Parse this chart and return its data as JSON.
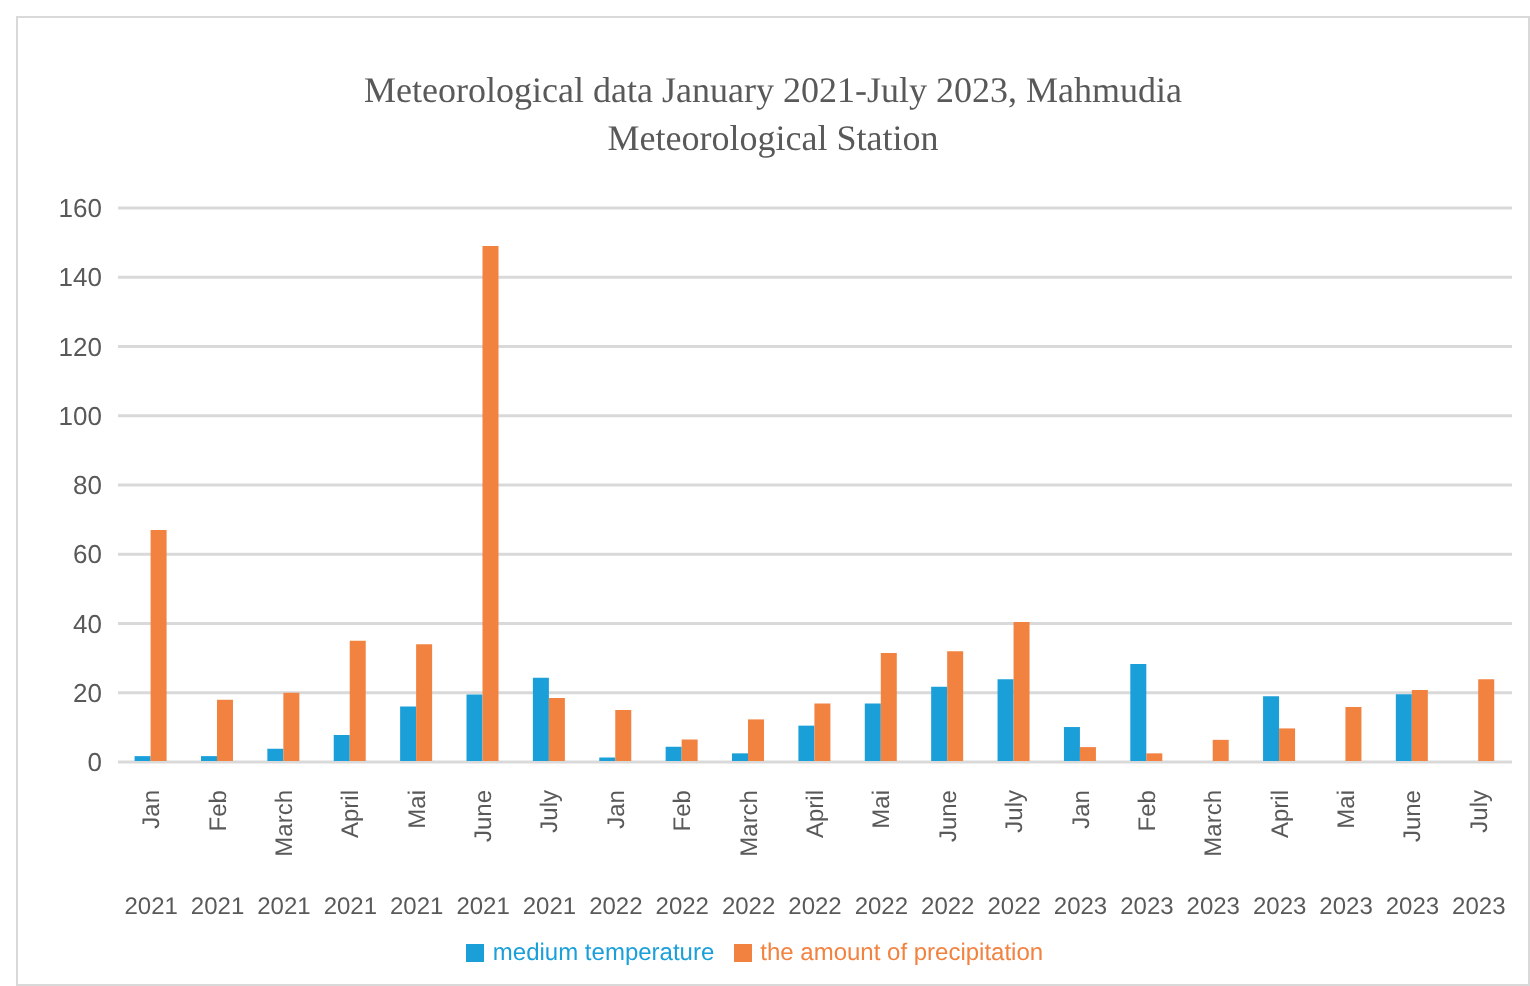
{
  "chart_data": {
    "type": "bar",
    "title": "Meteorological  data January 2021-July 2023,  Mahmudia Meteorological Station",
    "categories": [
      "Jan 2021",
      "Feb 2021",
      "March 2021",
      "April 2021",
      "Mai 2021",
      "June 2021",
      "July 2021",
      "Jan 2022",
      "Feb 2022",
      "March 2022",
      "April 2022",
      "Mai 2022",
      "June 2022",
      "July 2022",
      "Jan 2023",
      "Feb 2023",
      "March 2023",
      "April 2023",
      "Mai 2023",
      "June 2023",
      "July 2023"
    ],
    "series": [
      {
        "name": "medium temperature",
        "color": "#1a9fd9",
        "values": [
          1.7,
          1.7,
          3.8,
          7.8,
          16,
          19.5,
          24.3,
          1.3,
          4.4,
          2.5,
          10.5,
          16.9,
          21.7,
          23.9,
          10.1,
          28.3,
          null,
          19,
          null,
          19.6,
          null
        ]
      },
      {
        "name": "the amount of precipitation",
        "color": "#f28240",
        "values": [
          67,
          18,
          20,
          35,
          34,
          149,
          18.5,
          15,
          6.5,
          12.3,
          16.9,
          31.5,
          32,
          40.4,
          4.3,
          2.5,
          6.4,
          9.7,
          15.9,
          20.8,
          23.9
        ]
      }
    ],
    "ylim": [
      0,
      160
    ],
    "yticks": [
      0,
      20,
      40,
      60,
      80,
      100,
      120,
      140,
      160
    ],
    "grid": "y",
    "legend": "bottom"
  }
}
